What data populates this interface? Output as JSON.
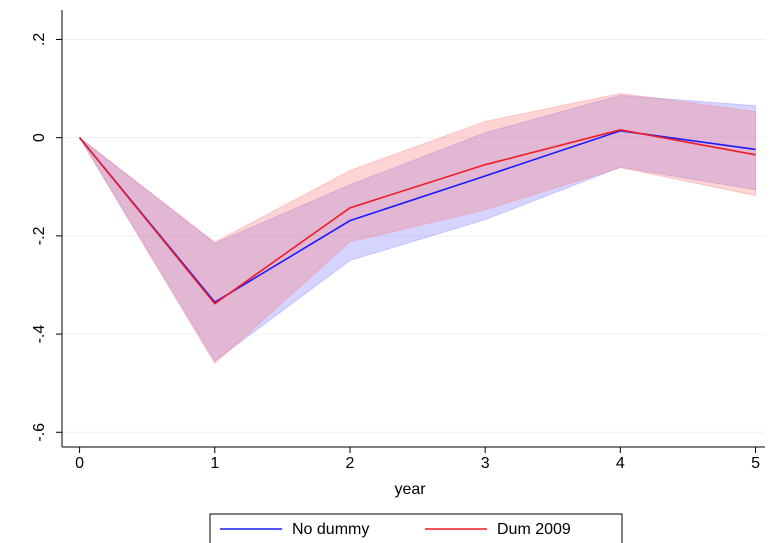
{
  "chart_data": {
    "type": "line",
    "x_label": "year",
    "x": [
      0,
      1,
      2,
      3,
      4,
      5
    ],
    "series": [
      {
        "name": "No dummy",
        "color": "#1a1aff",
        "band_color": "rgba(120,120,255,0.32)",
        "values": [
          0,
          -0.335,
          -0.169,
          -0.078,
          0.014,
          -0.024
        ],
        "lower": [
          0,
          -0.455,
          -0.25,
          -0.167,
          -0.06,
          -0.106
        ],
        "upper": [
          0,
          -0.215,
          -0.096,
          0.01,
          0.086,
          0.065
        ]
      },
      {
        "name": "Dum 2009",
        "color": "#ee1c25",
        "band_color": "rgba(255,120,120,0.32)",
        "values": [
          0,
          -0.338,
          -0.143,
          -0.055,
          0.016,
          -0.035
        ],
        "lower": [
          0,
          -0.46,
          -0.212,
          -0.147,
          -0.061,
          -0.118
        ],
        "upper": [
          0,
          -0.213,
          -0.067,
          0.033,
          0.09,
          0.053
        ]
      }
    ],
    "xlim": [
      -0.13,
      5.07
    ],
    "ylim": [
      -0.63,
      0.26
    ],
    "xticks": [
      0,
      1,
      2,
      3,
      4,
      5
    ],
    "yticks": [
      {
        "value": -0.6,
        "label": "-.6"
      },
      {
        "value": -0.4,
        "label": "-.4"
      },
      {
        "value": -0.2,
        "label": "-.2"
      },
      0,
      {
        "value": 0.2,
        "label": ".2"
      }
    ],
    "grid": true,
    "legend": "bottom"
  }
}
